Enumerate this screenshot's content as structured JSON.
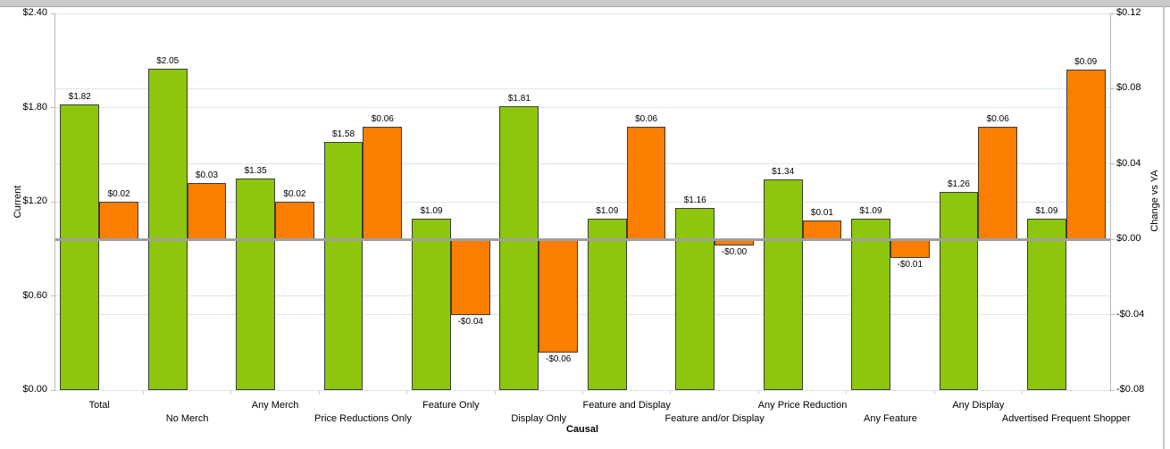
{
  "chart_data": {
    "type": "bar",
    "title": "",
    "xlabel": "Causal",
    "legend": "none",
    "grid": true,
    "categories": [
      "Total",
      "No Merch",
      "Any Merch",
      "Price Reductions Only",
      "Feature Only",
      "Display Only",
      "Feature and Display",
      "Feature and/or Display",
      "Any Price Reduction",
      "Any Feature",
      "Any Display",
      "Advertised Frequent Shopper"
    ],
    "left_axis": {
      "label": "Current",
      "min": 0,
      "max": 2.4,
      "ticks": [
        {
          "label": "$2.40",
          "value": 2.4
        },
        {
          "label": "$1.80",
          "value": 1.8
        },
        {
          "label": "$1.20",
          "value": 1.2
        },
        {
          "label": "$0.60",
          "value": 0.6
        },
        {
          "label": "$0.00",
          "value": 0
        }
      ]
    },
    "right_axis": {
      "label": "Change vs YA",
      "min": -0.08,
      "max": 0.12,
      "ticks": [
        {
          "label": "$0.12",
          "value": 0.12
        },
        {
          "label": "$0.08",
          "value": 0.08
        },
        {
          "label": "$0.04",
          "value": 0.04
        },
        {
          "label": "$0.00",
          "value": 0
        },
        {
          "label": "-$0.04",
          "value": -0.04
        },
        {
          "label": "-$0.08",
          "value": -0.08
        }
      ]
    },
    "series": [
      {
        "name": "Current",
        "axis": "left",
        "color": "#8dc60c",
        "values": [
          1.82,
          2.05,
          1.35,
          1.58,
          1.09,
          1.81,
          1.09,
          1.16,
          1.34,
          1.09,
          1.26,
          1.09
        ],
        "labels": [
          "$1.82",
          "$2.05",
          "$1.35",
          "$1.58",
          "$1.09",
          "$1.81",
          "$1.09",
          "$1.16",
          "$1.34",
          "$1.09",
          "$1.26",
          "$1.09"
        ]
      },
      {
        "name": "Change vs YA",
        "axis": "right",
        "color": "#fb7e00",
        "values": [
          0.02,
          0.03,
          0.02,
          0.06,
          -0.04,
          -0.06,
          0.06,
          -0.003,
          0.01,
          -0.01,
          0.06,
          0.09
        ],
        "labels": [
          "$0.02",
          "$0.03",
          "$0.02",
          "$0.06",
          "-$0.04",
          "-$0.06",
          "$0.06",
          "-$0.00",
          "$0.01",
          "-$0.01",
          "$0.06",
          "$0.09"
        ]
      }
    ]
  },
  "colors": {
    "green": "#8dc60c",
    "orange": "#fb7e00",
    "gridline": "#dbe5f1",
    "zero_line": "#a0a0a0",
    "axis_line": "#b9b9b9",
    "bar_border": "#3c3c3c",
    "boundary_tick": "#c9d6e8",
    "top_bar": "#cacaca"
  }
}
